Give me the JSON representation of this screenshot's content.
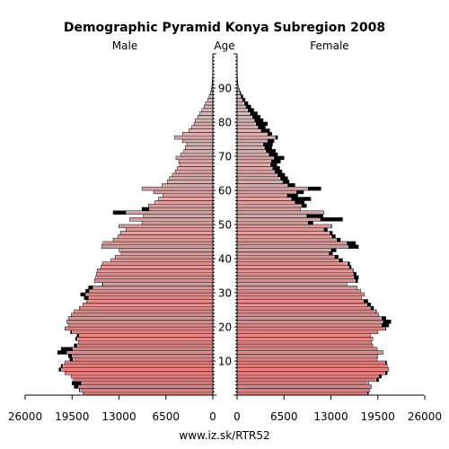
{
  "chart_data": {
    "type": "bar",
    "title": "Demographic Pyramid Konya Subregion 2008",
    "left_label": "Male",
    "center_label": "Age",
    "right_label": "Female",
    "footer": "www.iz.sk/RTR52",
    "xlim": [
      0,
      26000
    ],
    "x_ticks_male": [
      "26000",
      "19500",
      "13000",
      "6500",
      "0"
    ],
    "x_ticks_female": [
      "0",
      "6500",
      "13000",
      "19500",
      "26000"
    ],
    "age_ticks": [
      "10",
      "20",
      "30",
      "40",
      "50",
      "60",
      "70",
      "80",
      "90"
    ],
    "ages": [
      0,
      1,
      2,
      3,
      4,
      5,
      6,
      7,
      8,
      9,
      10,
      11,
      12,
      13,
      14,
      15,
      16,
      17,
      18,
      19,
      20,
      21,
      22,
      23,
      24,
      25,
      26,
      27,
      28,
      29,
      30,
      31,
      32,
      33,
      34,
      35,
      36,
      37,
      38,
      39,
      40,
      41,
      42,
      43,
      44,
      45,
      46,
      47,
      48,
      49,
      50,
      51,
      52,
      53,
      54,
      55,
      56,
      57,
      58,
      59,
      60,
      61,
      62,
      63,
      64,
      65,
      66,
      67,
      68,
      69,
      70,
      71,
      72,
      73,
      74,
      75,
      76,
      77,
      78,
      79,
      80,
      81,
      82,
      83,
      84,
      85,
      86,
      87,
      88,
      89,
      90,
      91,
      92,
      93,
      94,
      95,
      96,
      97,
      98,
      99,
      100
    ],
    "colors": {
      "male": "#d85050",
      "female": "#d85050",
      "excess": "#000000",
      "base": "#ffffff"
    },
    "series": [
      {
        "name": "Male",
        "values": [
          18000,
          18500,
          19200,
          19500,
          19300,
          19600,
          20500,
          21300,
          21000,
          20500,
          19800,
          20000,
          21500,
          21000,
          19200,
          18600,
          19000,
          18800,
          19700,
          20500,
          20000,
          20200,
          20000,
          19600,
          19200,
          18500,
          18000,
          17500,
          17800,
          18300,
          17600,
          17200,
          15300,
          16400,
          16200,
          16100,
          16000,
          15500,
          15300,
          14100,
          13500,
          12700,
          13000,
          15400,
          15200,
          13800,
          13100,
          12800,
          12000,
          13000,
          9800,
          11500,
          9600,
          13800,
          9800,
          8900,
          8000,
          7500,
          6900,
          8200,
          9800,
          7000,
          6300,
          6000,
          5600,
          5200,
          4900,
          4600,
          4700,
          5100,
          4400,
          4000,
          3800,
          3600,
          4200,
          5300,
          4200,
          3300,
          2900,
          2600,
          2400,
          2100,
          1800,
          1500,
          1200,
          1000,
          700,
          500,
          350,
          220,
          130,
          80,
          50,
          30,
          20,
          12,
          8,
          4,
          2,
          1,
          0
        ]
      },
      {
        "name": "Female",
        "values": [
          18200,
          18400,
          18600,
          18200,
          19600,
          20000,
          20800,
          21000,
          20800,
          20700,
          19400,
          19500,
          20200,
          19400,
          18800,
          18600,
          18800,
          18500,
          19500,
          20600,
          21000,
          21300,
          20600,
          19600,
          19300,
          18900,
          18500,
          18100,
          17200,
          17600,
          17100,
          16600,
          15200,
          16700,
          16800,
          16500,
          16100,
          15800,
          15600,
          14600,
          14000,
          13200,
          13700,
          16800,
          16400,
          14300,
          13600,
          13200,
          12500,
          13100,
          10500,
          14600,
          11900,
          12000,
          8800,
          9600,
          9300,
          10200,
          8400,
          9200,
          11600,
          8000,
          7200,
          7000,
          6600,
          6200,
          5900,
          5500,
          6000,
          6500,
          5600,
          5300,
          4800,
          4900,
          5100,
          5600,
          4800,
          4500,
          3900,
          4200,
          3600,
          3200,
          2800,
          2300,
          1900,
          1500,
          1100,
          800,
          500,
          300,
          160,
          90,
          55,
          32,
          20,
          12,
          8,
          4,
          2,
          1,
          0
        ]
      }
    ]
  }
}
